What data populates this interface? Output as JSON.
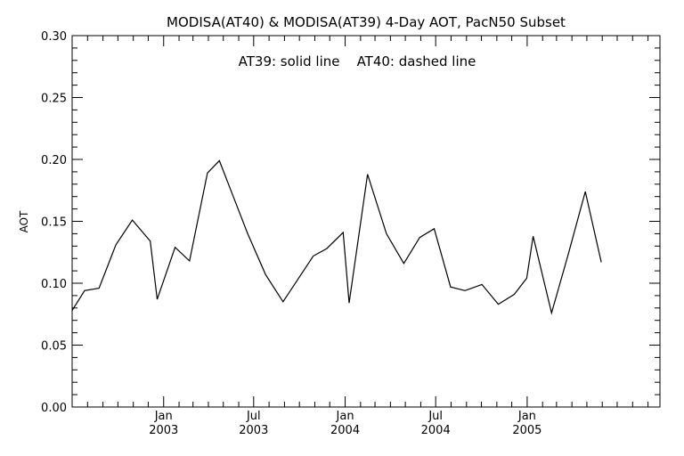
{
  "chart_data": {
    "type": "line",
    "title": "MODISA(AT40) & MODISA(AT39) 4-Day AOT, PacN50 Subset",
    "annotation": "AT39: solid line    AT40: dashed line",
    "ylabel": "AOT",
    "xlabel": "",
    "ylim": [
      0,
      0.3
    ],
    "xlim": [
      "2002-07-01",
      "2005-09-25"
    ],
    "yticks": [
      "0.00",
      "0.05",
      "0.10",
      "0.15",
      "0.20",
      "0.25",
      "0.30"
    ],
    "xticks": [
      {
        "date": "2003-01-01",
        "month": "Jan",
        "year": "2003"
      },
      {
        "date": "2003-07-01",
        "month": "Jul",
        "year": "2003"
      },
      {
        "date": "2004-01-01",
        "month": "Jan",
        "year": "2004"
      },
      {
        "date": "2004-07-01",
        "month": "Jul",
        "year": "2004"
      },
      {
        "date": "2005-01-01",
        "month": "Jan",
        "year": "2005"
      }
    ],
    "grid": false,
    "series": [
      {
        "name": "AT39",
        "style": "solid",
        "color": "#000000",
        "points": [
          {
            "x": "2002-07-01",
            "y": 0.078
          },
          {
            "x": "2002-07-26",
            "y": 0.094
          },
          {
            "x": "2002-08-24",
            "y": 0.096
          },
          {
            "x": "2002-09-27",
            "y": 0.131
          },
          {
            "x": "2002-10-30",
            "y": 0.151
          },
          {
            "x": "2002-12-05",
            "y": 0.134
          },
          {
            "x": "2002-12-19",
            "y": 0.087
          },
          {
            "x": "2003-01-24",
            "y": 0.129
          },
          {
            "x": "2003-02-22",
            "y": 0.118
          },
          {
            "x": "2003-03-30",
            "y": 0.189
          },
          {
            "x": "2003-04-23",
            "y": 0.199
          },
          {
            "x": "2003-06-19",
            "y": 0.14
          },
          {
            "x": "2003-07-25",
            "y": 0.107
          },
          {
            "x": "2003-08-29",
            "y": 0.085
          },
          {
            "x": "2003-10-29",
            "y": 0.122
          },
          {
            "x": "2003-11-25",
            "y": 0.128
          },
          {
            "x": "2003-12-28",
            "y": 0.141
          },
          {
            "x": "2004-01-09",
            "y": 0.084
          },
          {
            "x": "2004-02-15",
            "y": 0.188
          },
          {
            "x": "2004-03-24",
            "y": 0.14
          },
          {
            "x": "2004-04-28",
            "y": 0.116
          },
          {
            "x": "2004-05-30",
            "y": 0.137
          },
          {
            "x": "2004-06-28",
            "y": 0.144
          },
          {
            "x": "2004-07-31",
            "y": 0.097
          },
          {
            "x": "2004-08-29",
            "y": 0.094
          },
          {
            "x": "2004-10-02",
            "y": 0.099
          },
          {
            "x": "2004-11-04",
            "y": 0.083
          },
          {
            "x": "2004-12-06",
            "y": 0.091
          },
          {
            "x": "2004-12-31",
            "y": 0.104
          },
          {
            "x": "2005-01-13",
            "y": 0.138
          },
          {
            "x": "2005-02-19",
            "y": 0.076
          },
          {
            "x": "2005-03-25",
            "y": 0.124
          },
          {
            "x": "2005-04-28",
            "y": 0.174
          },
          {
            "x": "2005-05-30",
            "y": 0.117
          }
        ]
      }
    ]
  }
}
